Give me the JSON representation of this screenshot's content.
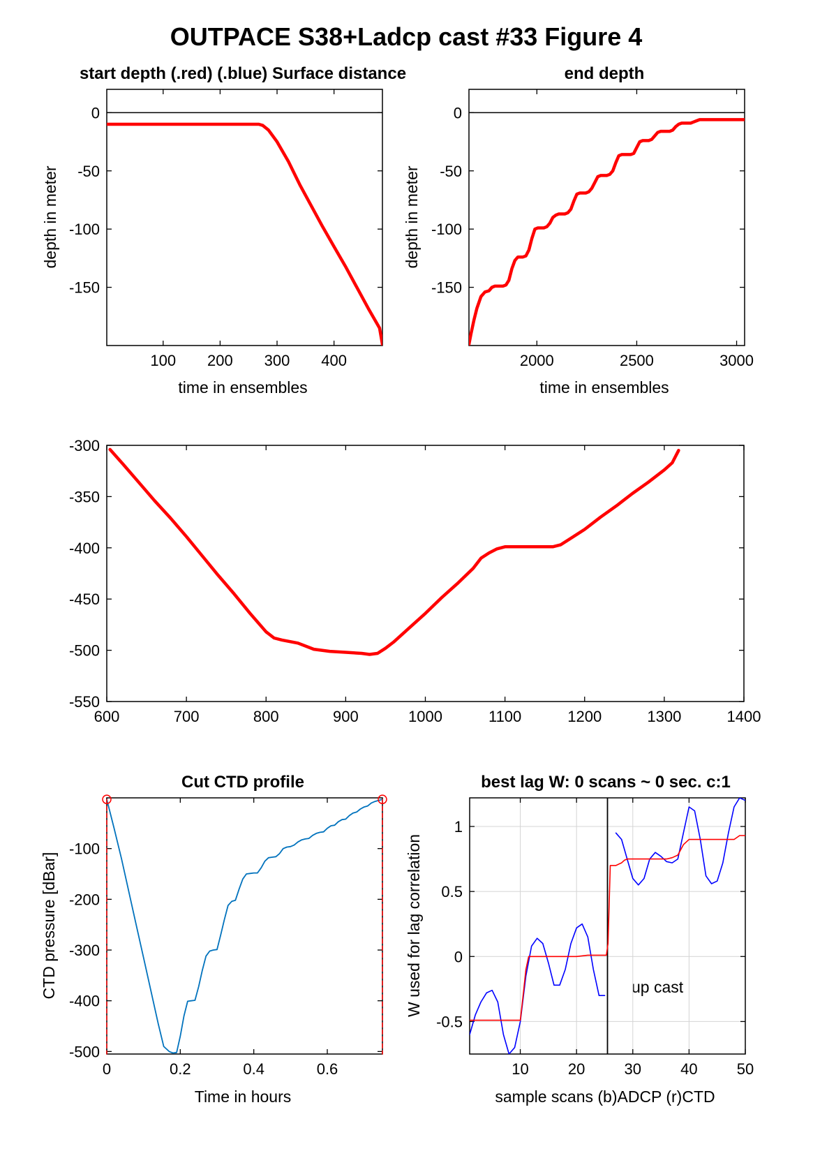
{
  "figure_title": "OUTPACE S38+Ladcp cast #33   Figure 4",
  "panels": {
    "start_depth": {
      "title": "start depth (.red) (.blue) Surface distance",
      "xlabel": "time in ensembles",
      "ylabel": "depth in meter"
    },
    "end_depth": {
      "title": "end depth",
      "xlabel": "time in ensembles",
      "ylabel": "depth in meter"
    },
    "middle": {
      "title": "",
      "xlabel": "",
      "ylabel": ""
    },
    "cut_ctd": {
      "title": "Cut CTD profile",
      "xlabel": "Time in hours",
      "ylabel": "CTD pressure [dBar]"
    },
    "best_lag": {
      "title": "best lag W: 0 scans ~ 0 sec.  c:1",
      "xlabel": "sample scans (b)ADCP (r)CTD",
      "ylabel": "W used for lag correlation",
      "annotation": "up cast"
    }
  },
  "colors": {
    "red": "#ff0000",
    "blue": "#0000ff",
    "ctd_blue": "#0072bd",
    "black": "#000000",
    "grid": "#d4d4d4"
  },
  "chart_data": [
    {
      "id": "start_depth",
      "type": "line",
      "title": "start depth (.red) (.blue) Surface distance",
      "xlabel": "time in ensembles",
      "ylabel": "depth in meter",
      "xlim": [
        1,
        485
      ],
      "ylim": [
        -200,
        20
      ],
      "xticks": [
        100,
        200,
        300,
        400
      ],
      "yticks": [
        0,
        -50,
        -100,
        -150
      ],
      "grid": false,
      "reference_line": {
        "y": 0,
        "color": "#000000"
      },
      "series": [
        {
          "color": "#ff0000",
          "width": 4.5,
          "x": [
            1,
            100,
            200,
            268,
            275,
            285,
            300,
            320,
            340,
            360,
            380,
            400,
            420,
            440,
            460,
            480,
            485
          ],
          "y": [
            -10,
            -10,
            -10,
            -10,
            -11,
            -15,
            -25,
            -42,
            -62,
            -80,
            -98,
            -115,
            -132,
            -150,
            -168,
            -185,
            -199
          ]
        }
      ]
    },
    {
      "id": "end_depth",
      "type": "line",
      "title": "end depth",
      "xlabel": "time in ensembles",
      "ylabel": "depth in meter",
      "xlim": [
        1660,
        3040
      ],
      "ylim": [
        -200,
        20
      ],
      "xticks": [
        2000,
        2500,
        3000
      ],
      "yticks": [
        0,
        -50,
        -100,
        -150
      ],
      "grid": false,
      "reference_line": {
        "y": 0,
        "color": "#000000"
      },
      "series": [
        {
          "color": "#ff0000",
          "width": 4.5,
          "x": [
            1660,
            1670,
            1685,
            1700,
            1720,
            1740,
            1760,
            1775,
            1790,
            1800,
            1815,
            1830,
            1845,
            1860,
            1875,
            1890,
            1905,
            1915,
            1930,
            1945,
            1960,
            1975,
            1990,
            2005,
            2020,
            2035,
            2050,
            2065,
            2080,
            2095,
            2110,
            2125,
            2140,
            2155,
            2170,
            2185,
            2200,
            2215,
            2230,
            2245,
            2260,
            2275,
            2290,
            2305,
            2320,
            2335,
            2350,
            2365,
            2380,
            2395,
            2410,
            2425,
            2440,
            2455,
            2470,
            2485,
            2500,
            2515,
            2530,
            2545,
            2560,
            2575,
            2590,
            2605,
            2620,
            2635,
            2650,
            2665,
            2680,
            2695,
            2710,
            2725,
            2740,
            2755,
            2770,
            2785,
            2800,
            2815,
            2830,
            2845,
            2860,
            2875,
            2890,
            2905,
            2920,
            2935,
            2950,
            2965,
            2980,
            2995,
            3010,
            3025,
            3040
          ],
          "y": [
            -199,
            -190,
            -178,
            -168,
            -158,
            -154,
            -153,
            -150,
            -149,
            -149,
            -149,
            -149,
            -148,
            -144,
            -134,
            -127,
            -124,
            -124,
            -124,
            -123,
            -118,
            -108,
            -100,
            -99,
            -99,
            -99,
            -98,
            -95,
            -90,
            -88,
            -87,
            -87,
            -87,
            -86,
            -83,
            -76,
            -70,
            -69,
            -69,
            -69,
            -68,
            -65,
            -60,
            -55,
            -54,
            -54,
            -54,
            -53,
            -50,
            -43,
            -37,
            -36,
            -36,
            -36,
            -36,
            -35,
            -30,
            -25,
            -24,
            -24,
            -24,
            -23,
            -20,
            -17,
            -16,
            -16,
            -16,
            -16,
            -15,
            -12,
            -10,
            -9,
            -9,
            -9,
            -9,
            -8,
            -7,
            -6,
            -6,
            -6,
            -6,
            -6,
            -6,
            -6,
            -6,
            -6,
            -6,
            -6,
            -6,
            -6,
            -6,
            -6,
            -6
          ]
        }
      ]
    },
    {
      "id": "middle",
      "type": "line",
      "xlim": [
        600,
        1400
      ],
      "ylim": [
        -550,
        -300
      ],
      "xticks": [
        600,
        700,
        800,
        900,
        1000,
        1100,
        1200,
        1300,
        1400
      ],
      "yticks": [
        -300,
        -350,
        -400,
        -450,
        -500,
        -550
      ],
      "grid": false,
      "series": [
        {
          "color": "#ff0000",
          "width": 4.5,
          "x": [
            604,
            620,
            640,
            660,
            680,
            700,
            720,
            740,
            760,
            780,
            800,
            810,
            820,
            840,
            860,
            880,
            900,
            920,
            930,
            940,
            950,
            960,
            980,
            1000,
            1020,
            1040,
            1060,
            1070,
            1080,
            1090,
            1100,
            1120,
            1140,
            1160,
            1170,
            1180,
            1200,
            1220,
            1240,
            1260,
            1280,
            1300,
            1310,
            1318
          ],
          "y": [
            -304,
            -318,
            -336,
            -354,
            -371,
            -389,
            -408,
            -427,
            -445,
            -464,
            -482,
            -488,
            -490,
            -493,
            -499,
            -501,
            -502,
            -503,
            -504,
            -503,
            -498,
            -492,
            -478,
            -464,
            -449,
            -435,
            -420,
            -410,
            -405,
            -401,
            -399,
            -399,
            -399,
            -399,
            -397,
            -392,
            -382,
            -370,
            -359,
            -347,
            -336,
            -324,
            -317,
            -305
          ]
        }
      ]
    },
    {
      "id": "cut_ctd",
      "type": "line",
      "title": "Cut CTD profile",
      "xlabel": "Time in hours",
      "ylabel": "CTD pressure [dBar]",
      "xlim": [
        0,
        0.75
      ],
      "ylim": [
        -505,
        0
      ],
      "xticks": [
        0,
        0.2,
        0.4,
        0.6
      ],
      "yticks": [
        -100,
        -200,
        -300,
        -400,
        -500
      ],
      "grid": false,
      "markers": [
        {
          "x": 0,
          "y": -3
        },
        {
          "x": 0.75,
          "y": -3
        }
      ],
      "series": [
        {
          "name": "",
          "color": "#0072bd",
          "width": 1.8,
          "x": [
            0,
            0.02,
            0.04,
            0.06,
            0.08,
            0.1,
            0.12,
            0.14,
            0.155,
            0.17,
            0.18,
            0.19,
            0.2,
            0.21,
            0.22,
            0.23,
            0.24,
            0.25,
            0.26,
            0.27,
            0.28,
            0.29,
            0.3,
            0.31,
            0.32,
            0.33,
            0.34,
            0.35,
            0.36,
            0.37,
            0.38,
            0.39,
            0.4,
            0.41,
            0.42,
            0.43,
            0.44,
            0.45,
            0.46,
            0.47,
            0.48,
            0.49,
            0.5,
            0.51,
            0.52,
            0.53,
            0.54,
            0.55,
            0.56,
            0.57,
            0.58,
            0.59,
            0.6,
            0.61,
            0.62,
            0.63,
            0.64,
            0.65,
            0.66,
            0.67,
            0.68,
            0.69,
            0.7,
            0.71,
            0.72,
            0.73,
            0.74,
            0.75
          ],
          "y": [
            -3,
            -60,
            -120,
            -185,
            -250,
            -315,
            -380,
            -445,
            -490,
            -500,
            -503,
            -502,
            -470,
            -430,
            -401,
            -400,
            -399,
            -372,
            -340,
            -312,
            -302,
            -300,
            -299,
            -270,
            -240,
            -212,
            -204,
            -202,
            -180,
            -160,
            -150,
            -149,
            -148,
            -148,
            -138,
            -125,
            -118,
            -117,
            -116,
            -110,
            -100,
            -97,
            -96,
            -93,
            -87,
            -83,
            -81,
            -80,
            -74,
            -70,
            -68,
            -67,
            -60,
            -55,
            -54,
            -47,
            -43,
            -42,
            -35,
            -30,
            -28,
            -22,
            -18,
            -16,
            -10,
            -7,
            -5,
            -3
          ]
        },
        {
          "name": "",
          "color": "#ff0000",
          "width": 1.5,
          "dash": true,
          "x": [
            0,
            0
          ],
          "y": [
            -3,
            -505
          ]
        },
        {
          "name": "",
          "color": "#ff0000",
          "width": 1.5,
          "dash": true,
          "x": [
            0.75,
            0.75
          ],
          "y": [
            -3,
            -505
          ]
        }
      ]
    },
    {
      "id": "best_lag",
      "type": "line",
      "title": "best lag W: 0 scans ~ 0 sec.  c:1",
      "xlabel": "sample scans (b)ADCP (r)CTD",
      "ylabel": "W used for lag correlation",
      "xlim": [
        1,
        50
      ],
      "ylim": [
        -0.75,
        1.22
      ],
      "xticks": [
        10,
        20,
        30,
        40,
        50
      ],
      "yticks": [
        1,
        0.5,
        0,
        -0.5
      ],
      "grid": true,
      "vertical_line": {
        "x": 25.5,
        "color": "#000000"
      },
      "series": [
        {
          "color": "#0000ff",
          "width": 1.6,
          "x": [
            1,
            2,
            3,
            4,
            5,
            6,
            7,
            8,
            9,
            10,
            11,
            12,
            13,
            14,
            15,
            16,
            17,
            18,
            19,
            20,
            21,
            22,
            23,
            24,
            25
          ],
          "y": [
            -0.6,
            -0.45,
            -0.35,
            -0.28,
            -0.26,
            -0.35,
            -0.6,
            -0.75,
            -0.7,
            -0.5,
            -0.15,
            0.08,
            0.14,
            0.1,
            -0.05,
            -0.22,
            -0.22,
            -0.1,
            0.1,
            0.22,
            0.25,
            0.15,
            -0.1,
            -0.3,
            -0.3
          ]
        },
        {
          "color": "#0000ff",
          "width": 1.6,
          "x": [
            27,
            28,
            29,
            30,
            31,
            32,
            33,
            34,
            35,
            36,
            37,
            38,
            39,
            40,
            41,
            42,
            43,
            44,
            45,
            46,
            47,
            48,
            49,
            50
          ],
          "y": [
            0.95,
            0.9,
            0.75,
            0.6,
            0.55,
            0.6,
            0.75,
            0.8,
            0.77,
            0.73,
            0.72,
            0.75,
            0.95,
            1.15,
            1.12,
            0.9,
            0.62,
            0.56,
            0.58,
            0.72,
            0.95,
            1.15,
            1.22,
            1.2
          ]
        },
        {
          "color": "#ff0000",
          "width": 1.6,
          "x": [
            1,
            10,
            10.5,
            11,
            11.5,
            12,
            16,
            20,
            22,
            25.3,
            25.6,
            26,
            27,
            28,
            28.5,
            29,
            30,
            31,
            32,
            36,
            37,
            38,
            39,
            40,
            41,
            44,
            48,
            49,
            50
          ],
          "y": [
            -0.49,
            -0.49,
            -0.3,
            -0.1,
            0,
            0,
            0,
            0,
            0.01,
            0.01,
            0.1,
            0.7,
            0.7,
            0.72,
            0.74,
            0.75,
            0.75,
            0.75,
            0.75,
            0.75,
            0.76,
            0.78,
            0.86,
            0.9,
            0.9,
            0.9,
            0.9,
            0.93,
            0.93
          ]
        }
      ]
    }
  ]
}
